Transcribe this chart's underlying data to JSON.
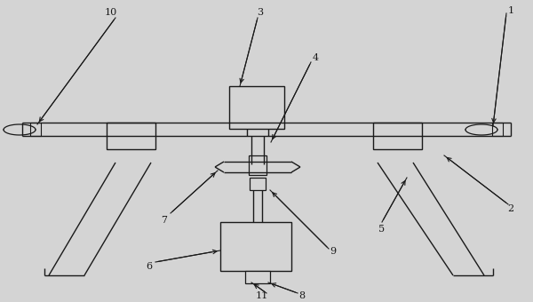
{
  "bg_color": "#d4d4d4",
  "line_color": "#1a1a1a",
  "line_width": 1.0,
  "fig_width": 6.0,
  "fig_height": 3.4
}
